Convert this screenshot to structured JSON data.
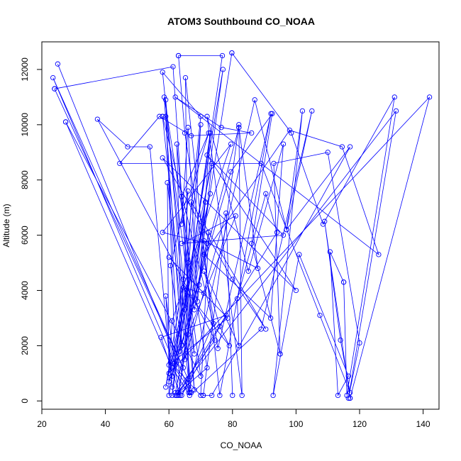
{
  "chart_data": {
    "type": "line",
    "title": "ATOM3 Southbound CO_NOAA",
    "xlabel": "CO_NOAA",
    "ylabel": "Altitude (m)",
    "xlim": [
      20,
      145
    ],
    "ylim": [
      -300,
      13000
    ],
    "xticks": [
      20,
      40,
      60,
      80,
      100,
      120,
      140
    ],
    "yticks": [
      0,
      2000,
      4000,
      6000,
      8000,
      10000,
      12000
    ],
    "grid": false,
    "legend": "none",
    "colors": {
      "series": "#0000ff",
      "frame": "#000000"
    },
    "series": [
      {
        "x": [
          25.0,
          66.6,
          59.5,
          60.0,
          77.0,
          63.0,
          79.8
        ],
        "y": [
          12200,
          300,
          7900,
          200,
          12000,
          200,
          12600
        ]
      },
      {
        "x": [
          79.8,
          98.5,
          108.5,
          131.0,
          116.0,
          115.0
        ],
        "y": [
          12600,
          9700,
          6400,
          11000,
          200,
          4300
        ]
      },
      {
        "x": [
          115.0,
          110.7,
          113.2,
          116.5,
          101.0,
          92.8,
          102.0,
          97.0
        ],
        "y": [
          4300,
          5400,
          200,
          900,
          5300,
          200,
          10500,
          6200
        ]
      },
      {
        "x": [
          97.0,
          87.0,
          66.2,
          65.2,
          76.0,
          92.1,
          75.4,
          65.0,
          63.0
        ],
        "y": [
          6200,
          10900,
          300,
          11700,
          200,
          10400,
          1900,
          9700,
          12500
        ]
      },
      {
        "x": [
          63.0,
          76.8,
          61.0,
          70.0,
          58.0,
          68.0,
          61.3,
          24.0
        ],
        "y": [
          12500,
          12500,
          200,
          10300,
          11900,
          400,
          12100,
          11300
        ]
      },
      {
        "x": [
          24.0,
          66.0,
          62.0,
          72.0,
          58.5,
          64.5,
          23.5,
          62.0,
          59.0,
          67.0,
          58.0
        ],
        "y": [
          11300,
          800,
          200,
          1200,
          11000,
          1200,
          11700,
          1300,
          10900,
          300,
          10300
        ]
      },
      {
        "x": [
          58.0,
          74.0,
          64.0,
          78.0,
          57.5,
          63.5,
          59.0,
          70.0,
          27.5
        ],
        "y": [
          10300,
          2800,
          200,
          3100,
          2300,
          200,
          10300,
          900,
          10100
        ]
      },
      {
        "x": [
          27.5,
          61.0,
          66.5,
          89.0,
          105.0,
          97.0,
          117.0,
          73.5,
          70.8
        ],
        "y": [
          10100,
          1200,
          200,
          2600,
          10500,
          6200,
          9200,
          200,
          200
        ]
      },
      {
        "x": [
          70.8,
          82.0,
          83.0,
          72.0,
          85.0,
          96.0,
          92.0,
          71.0
        ],
        "y": [
          200,
          10000,
          200,
          10300,
          4700,
          9300,
          3000,
          5300
        ]
      },
      {
        "x": [
          71.0,
          98.0,
          114.5,
          126.0,
          62.0,
          76.5,
          86.0,
          67.0,
          57.0,
          44.5,
          89.0,
          107.5,
          117.0,
          114.0,
          109.0,
          117.0
        ],
        "y": [
          5300,
          9800,
          9200,
          5300,
          11000,
          9900,
          9700,
          9600,
          10300,
          8600,
          8600,
          3100,
          300,
          2200,
          6500,
          100
        ]
      },
      {
        "x": [
          117.0,
          142.0,
          60.0,
          73.0,
          61.0,
          79.5,
          92.5,
          86.0,
          95.0
        ],
        "y": [
          100,
          11000,
          1000,
          7500,
          900,
          8300,
          10400,
          5700,
          1700
        ]
      },
      {
        "x": [
          95.0,
          93.0,
          110.0,
          120.0,
          116.5,
          131.5,
          63.0,
          59.0,
          61.0,
          54.0,
          47.0,
          37.5,
          74.5,
          62.0,
          72.5,
          70.0,
          60.5,
          66.0,
          62.5
        ],
        "y": [
          1700,
          8600,
          9000,
          2100,
          100,
          10500,
          300,
          3800,
          500,
          9200,
          9200,
          10200,
          2200,
          300,
          6100,
          200,
          1400,
          500,
          200
        ]
      },
      {
        "x": [
          62.5,
          94.0,
          90.5,
          81.5,
          82.0,
          71.0,
          76.0,
          79.0,
          64.5,
          71.0,
          60.0,
          78.5,
          60.0,
          61.0,
          79.5,
          58.0,
          72.0
        ],
        "y": [
          200,
          6100,
          7500,
          3700,
          2000,
          4700,
          2700,
          2000,
          4100,
          3900,
          5200,
          3000,
          1300,
          2900,
          9300,
          6100,
          5700
        ]
      },
      {
        "x": [
          72.0,
          68.0,
          64.0,
          72.5,
          64.0,
          66.0,
          69.0,
          71.0,
          88.0,
          82.0
        ],
        "y": [
          5700,
          3300,
          7400,
          9700,
          6400,
          9900,
          3600,
          5800,
          4800,
          9900
        ]
      },
      {
        "x": [
          82.0,
          63.5,
          66.0,
          60.5,
          64.0,
          62.5,
          68.0,
          64.5,
          59.0,
          73.5,
          69.5,
          73.0,
          65.0,
          70.0,
          66.0,
          71.5
        ],
        "y": [
          9900,
          1800,
          7600,
          4900,
          2000,
          9300,
          1700,
          4400,
          500,
          8600,
          4200,
          9700,
          3300,
          10000,
          2400,
          7200
        ]
      },
      {
        "x": [
          71.5,
          60.0,
          81.0,
          64.0,
          96.0,
          72.0,
          100.0,
          58.0,
          80.0,
          90.5,
          67.0,
          66.0,
          65.0,
          78.0,
          80.0
        ],
        "y": [
          7200,
          700,
          6700,
          5700,
          6000,
          8900,
          4000,
          8800,
          4400,
          2600,
          7200,
          5000,
          1500,
          6800,
          200
        ]
      }
    ]
  }
}
